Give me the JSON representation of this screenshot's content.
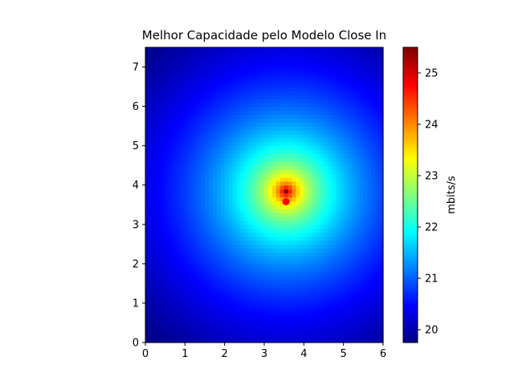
{
  "chart_data": {
    "type": "heatmap",
    "title": "Melhor Capacidade pelo Modelo Close In",
    "xlabel": "",
    "ylabel": "",
    "xlim": [
      0,
      6
    ],
    "ylim": [
      0,
      7.5
    ],
    "x_ticks": [
      "0",
      "1",
      "2",
      "3",
      "4",
      "5",
      "6"
    ],
    "y_ticks": [
      "0",
      "1",
      "2",
      "3",
      "4",
      "5",
      "6",
      "7"
    ],
    "grid_cells": [
      60,
      75
    ],
    "colormap": "jet",
    "peak_location": [
      3.55,
      3.85
    ],
    "peak_value": 25.5,
    "corner_value": 19.75,
    "marker": {
      "x": 3.55,
      "y": 3.58,
      "color": "#ff0000"
    },
    "colorbar": {
      "label": "mbits/s",
      "min": 19.75,
      "max": 25.5,
      "ticks": [
        "20",
        "21",
        "22",
        "23",
        "24",
        "25"
      ]
    },
    "grid": false
  }
}
